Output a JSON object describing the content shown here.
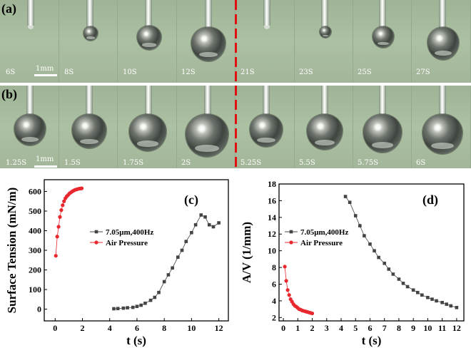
{
  "panels": {
    "a": "(a)",
    "b": "(b)",
    "c": "(c)",
    "d": "(d)"
  },
  "strip_a": {
    "times": [
      "6S",
      "8S",
      "10S",
      "12S",
      "21S",
      "23S",
      "25S",
      "27S"
    ],
    "scale_label": "1mm"
  },
  "strip_b": {
    "times": [
      "1.25S",
      "1.5S",
      "1.75S",
      "2S",
      "5.25S",
      "5.5S",
      "5.75S",
      "6S"
    ],
    "scale_label": "1mm"
  },
  "colors": {
    "series1": "#444444",
    "series2": "#e8282e",
    "divider": "#e01010"
  },
  "chart_data": [
    {
      "type": "scatter",
      "panel": "(c)",
      "xlabel": "t (s)",
      "ylabel": "Surface Tension (mN/m)",
      "xlim": [
        -0.8,
        12.7
      ],
      "ylim": [
        -60,
        660
      ],
      "xticks": [
        "0",
        "2",
        "4",
        "6",
        "8",
        "10",
        "12"
      ],
      "yticks": [
        "0",
        "100",
        "200",
        "300",
        "400",
        "500",
        "600"
      ],
      "legend_position": "center-right",
      "series": [
        {
          "name": "7.05μm,400Hz",
          "marker": "square",
          "x": [
            4.3,
            4.6,
            5.0,
            5.3,
            5.7,
            6.0,
            6.3,
            6.6,
            7.0,
            7.3,
            7.6,
            8.0,
            8.3,
            8.6,
            9.0,
            9.3,
            9.6,
            10.0,
            10.3,
            10.7,
            11.0,
            11.3,
            11.6,
            12.0
          ],
          "y": [
            2,
            3,
            5,
            7,
            9,
            14,
            20,
            30,
            45,
            60,
            85,
            140,
            175,
            210,
            265,
            300,
            345,
            390,
            430,
            480,
            470,
            430,
            420,
            440
          ]
        },
        {
          "name": "Air Pressure",
          "marker": "circle",
          "x": [
            0.05,
            0.15,
            0.25,
            0.35,
            0.45,
            0.55,
            0.65,
            0.75,
            0.85,
            0.95,
            1.05,
            1.15,
            1.25,
            1.35,
            1.45,
            1.55,
            1.65,
            1.75,
            1.85,
            1.95
          ],
          "y": [
            272,
            370,
            420,
            470,
            505,
            530,
            550,
            565,
            575,
            582,
            590,
            595,
            600,
            604,
            608,
            610,
            612,
            614,
            615,
            616
          ]
        }
      ]
    },
    {
      "type": "scatter",
      "panel": "(d)",
      "xlabel": "t (s)",
      "ylabel": "A/V (1/mm)",
      "xlim": [
        -0.3,
        12.5
      ],
      "ylim": [
        1.6,
        18
      ],
      "xticks": [
        "0",
        "1",
        "2",
        "3",
        "4",
        "5",
        "6",
        "7",
        "8",
        "9",
        "10",
        "11",
        "12"
      ],
      "yticks": [
        "2",
        "4",
        "6",
        "8",
        "10",
        "12",
        "14",
        "16",
        "18"
      ],
      "legend_position": "center",
      "series": [
        {
          "name": "7.05μm,400Hz",
          "marker": "square",
          "x": [
            4.3,
            4.6,
            5.0,
            5.3,
            5.6,
            6.0,
            6.3,
            6.6,
            7.0,
            7.3,
            7.6,
            8.0,
            8.3,
            8.6,
            9.0,
            9.3,
            9.6,
            10.0,
            10.3,
            10.6,
            11.0,
            11.3,
            11.6,
            12.0
          ],
          "y": [
            16.5,
            15.8,
            14.2,
            13.0,
            11.8,
            10.8,
            10.0,
            9.2,
            8.5,
            7.8,
            7.2,
            6.6,
            6.1,
            5.7,
            5.3,
            5.0,
            4.7,
            4.4,
            4.2,
            4.0,
            3.8,
            3.6,
            3.4,
            3.2
          ]
        },
        {
          "name": "Air Pressure",
          "marker": "circle",
          "x": [
            0.1,
            0.2,
            0.3,
            0.4,
            0.5,
            0.6,
            0.7,
            0.8,
            0.9,
            1.0,
            1.1,
            1.2,
            1.3,
            1.4,
            1.5,
            1.6,
            1.7,
            1.8,
            1.9,
            2.0
          ],
          "y": [
            8.1,
            6.4,
            5.3,
            4.7,
            4.2,
            3.9,
            3.6,
            3.4,
            3.3,
            3.15,
            3.0,
            2.95,
            2.85,
            2.8,
            2.75,
            2.7,
            2.65,
            2.6,
            2.55,
            2.5
          ]
        }
      ]
    }
  ]
}
